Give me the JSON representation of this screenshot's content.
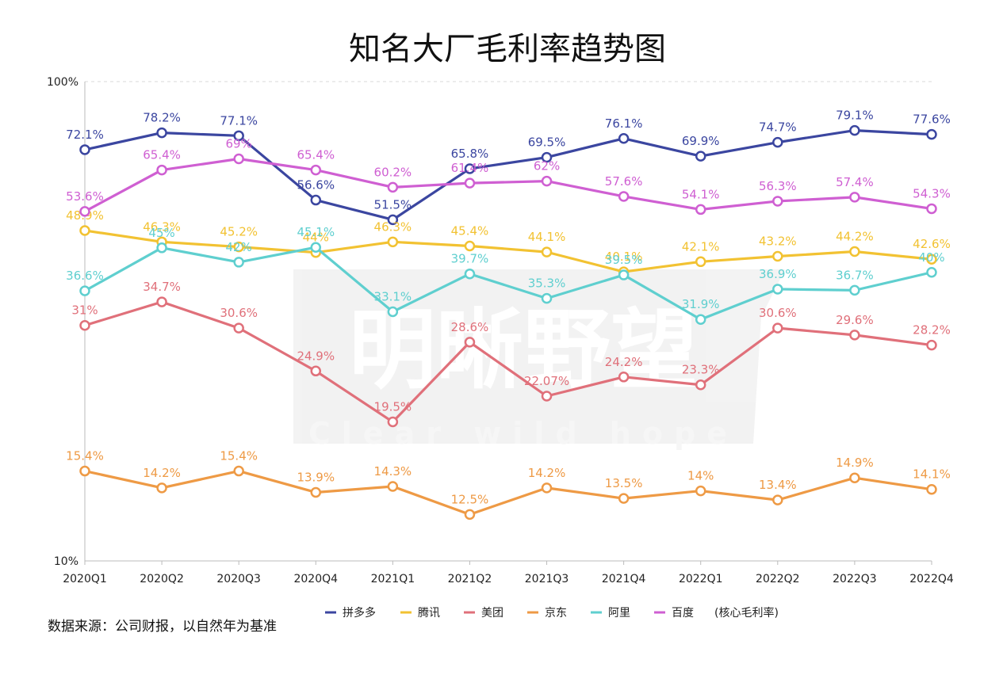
{
  "chart_data": {
    "type": "line",
    "title": "知名大厂毛利率趋势图",
    "categories": [
      "2020Q1",
      "2020Q2",
      "2020Q3",
      "2020Q4",
      "2021Q1",
      "2021Q2",
      "2021Q3",
      "2021Q4",
      "2022Q1",
      "2022Q2",
      "2022Q3",
      "2022Q4"
    ],
    "y_scale": "log",
    "ylim": [
      10,
      100
    ],
    "ytick_labels": [
      "10%",
      "100%"
    ],
    "grid": "dashed horizontal at 100%",
    "legend_position": "bottom",
    "legend_note": "(核心毛利率)",
    "series": [
      {
        "name": "拼多多",
        "color": "#3b46a0",
        "values": [
          72.1,
          78.2,
          77.1,
          56.6,
          51.5,
          65.8,
          69.5,
          76.1,
          69.9,
          74.7,
          79.1,
          77.6
        ],
        "labels": [
          "72.1%",
          "78.2%",
          "77.1%",
          "56.6%",
          "51.5%",
          "65.8%",
          "69.5%",
          "76.1%",
          "69.9%",
          "74.7%",
          "79.1%",
          "77.6%"
        ]
      },
      {
        "name": "腾讯",
        "color": "#f2c232",
        "values": [
          48.9,
          46.3,
          45.2,
          44,
          46.3,
          45.4,
          44.1,
          40.1,
          42.1,
          43.2,
          44.2,
          42.6
        ],
        "labels": [
          "48.9%",
          "46.3%",
          "45.2%",
          "44%",
          "46.3%",
          "45.4%",
          "44.1%",
          "40.1%",
          "42.1%",
          "43.2%",
          "44.2%",
          "42.6%"
        ]
      },
      {
        "name": "美团",
        "color": "#e0707a",
        "values": [
          31,
          34.7,
          30.6,
          24.9,
          19.5,
          28.6,
          22.07,
          24.2,
          23.3,
          30.6,
          29.6,
          28.2
        ],
        "labels": [
          "31%",
          "34.7%",
          "30.6%",
          "24.9%",
          "19.5%",
          "28.6%",
          "22.07%",
          "24.2%",
          "23.3%",
          "30.6%",
          "29.6%",
          "28.2%"
        ]
      },
      {
        "name": "京东",
        "color": "#ee9a45",
        "values": [
          15.4,
          14.2,
          15.4,
          13.9,
          14.3,
          12.5,
          14.2,
          13.5,
          14,
          13.4,
          14.9,
          14.1
        ],
        "labels": [
          "15.4%",
          "14.2%",
          "15.4%",
          "13.9%",
          "14.3%",
          "12.5%",
          "14.2%",
          "13.5%",
          "14%",
          "13.4%",
          "14.9%",
          "14.1%"
        ]
      },
      {
        "name": "阿里",
        "color": "#5fcfcf",
        "values": [
          36.6,
          45,
          42,
          45.1,
          33.1,
          39.7,
          35.3,
          39.5,
          31.9,
          36.9,
          36.7,
          40
        ],
        "labels": [
          "36.6%",
          "45%",
          "42%",
          "45.1%",
          "33.1%",
          "39.7%",
          "35.3%",
          "39.5%",
          "31.9%",
          "36.9%",
          "36.7%",
          "40%"
        ]
      },
      {
        "name": "百度",
        "color": "#cf5fd2",
        "values": [
          53.6,
          65.4,
          69,
          65.4,
          60.2,
          61.4,
          62,
          57.6,
          54.1,
          56.3,
          57.4,
          54.3
        ],
        "labels": [
          "53.6%",
          "65.4%",
          "69%",
          "65.4%",
          "60.2%",
          "61.4%",
          "62%",
          "57.6%",
          "54.1%",
          "56.3%",
          "57.4%",
          "54.3%"
        ]
      }
    ],
    "source_note": "数据来源：公司财报，以自然年为基准"
  },
  "watermark": {
    "line1": "明晰野望",
    "line2": "Clear wild hope"
  }
}
